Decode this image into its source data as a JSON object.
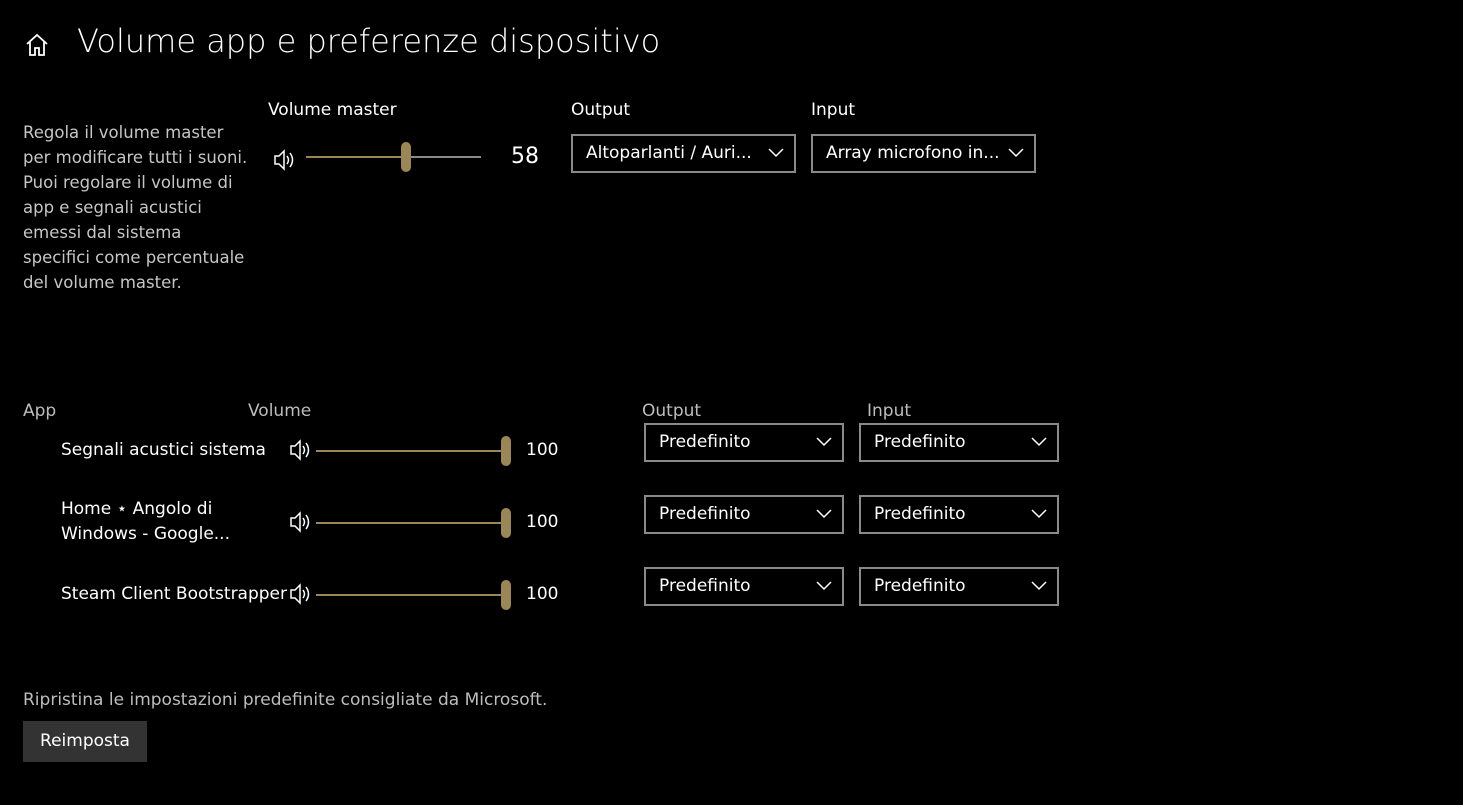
{
  "header": {
    "title": "Volume app e preferenze dispositivo"
  },
  "master": {
    "description_lines": [
      "Regola il volume master",
      "per modificare tutti i suoni.",
      "Puoi regolare il volume di",
      "app e segnali acustici",
      "emessi dal sistema",
      "specifici come percentuale",
      "del volume master."
    ],
    "volume_label": "Volume master",
    "volume": 58,
    "output_label": "Output",
    "output": "Altoparlanti / Auri...",
    "input_label": "Input",
    "input": "Array microfono in..."
  },
  "apps": {
    "headers": [
      "App",
      "Volume",
      "Output",
      "Input"
    ],
    "rows": [
      {
        "name_lines": [
          "Segnali acustici sistema"
        ],
        "volume": 100,
        "output": "Predefinito",
        "input": "Predefinito"
      },
      {
        "name_lines": [
          "Home ⋆ Angolo di",
          "Windows - Google..."
        ],
        "volume": 100,
        "output": "Predefinito",
        "input": "Predefinito"
      },
      {
        "name_lines": [
          "Steam Client Bootstrapper"
        ],
        "volume": 100,
        "output": "Predefinito",
        "input": "Predefinito"
      }
    ]
  },
  "reset": {
    "note": "Ripristina le impostazioni predefinite consigliate da Microsoft.",
    "button": "Reimposta"
  }
}
